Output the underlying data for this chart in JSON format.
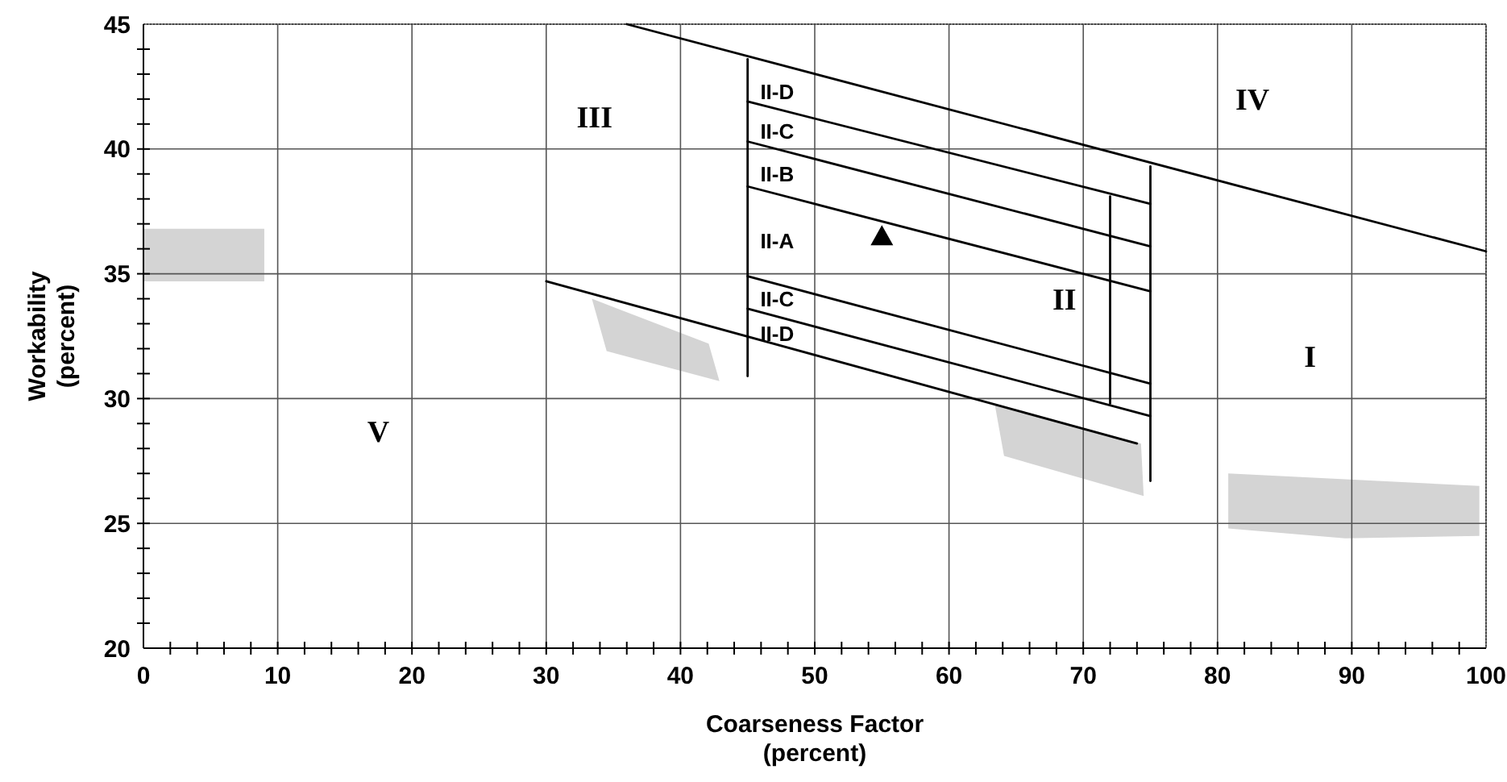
{
  "chart_data": {
    "type": "line",
    "xlabel": "Coarseness Factor\n(percent)",
    "ylabel": "Workability\n(percent)",
    "xlim": [
      0,
      100
    ],
    "ylim": [
      20,
      45
    ],
    "xticks": [
      0,
      {
        "value": 2,
        "label": null
      },
      {
        "value": 4,
        "label": null
      },
      {
        "value": 6,
        "label": null
      },
      {
        "value": 8,
        "label": null
      },
      10,
      {
        "value": 12,
        "label": null
      },
      {
        "value": 14,
        "label": null
      },
      {
        "value": 16,
        "label": null
      },
      {
        "value": 18,
        "label": null
      },
      20,
      {
        "value": 22,
        "label": null
      },
      {
        "value": 24,
        "label": null
      },
      {
        "value": 26,
        "label": null
      },
      {
        "value": 28,
        "label": null
      },
      30,
      {
        "value": 32,
        "label": null
      },
      {
        "value": 34,
        "label": null
      },
      {
        "value": 36,
        "label": null
      },
      {
        "value": 38,
        "label": null
      },
      40,
      {
        "value": 42,
        "label": null
      },
      {
        "value": 44,
        "label": null
      },
      {
        "value": 46,
        "label": null
      },
      {
        "value": 48,
        "label": null
      },
      50,
      {
        "value": 52,
        "label": null
      },
      {
        "value": 54,
        "label": null
      },
      {
        "value": 56,
        "label": null
      },
      {
        "value": 58,
        "label": null
      },
      60,
      {
        "value": 62,
        "label": null
      },
      {
        "value": 64,
        "label": null
      },
      {
        "value": 66,
        "label": null
      },
      {
        "value": 68,
        "label": null
      },
      70,
      {
        "value": 72,
        "label": null
      },
      {
        "value": 74,
        "label": null
      },
      {
        "value": 76,
        "label": null
      },
      {
        "value": 78,
        "label": null
      },
      80,
      {
        "value": 82,
        "label": null
      },
      {
        "value": 84,
        "label": null
      },
      {
        "value": 86,
        "label": null
      },
      {
        "value": 88,
        "label": null
      },
      90,
      {
        "value": 92,
        "label": null
      },
      {
        "value": 94,
        "label": null
      },
      {
        "value": 96,
        "label": null
      },
      {
        "value": 98,
        "label": null
      },
      100
    ],
    "yticks": [
      20,
      {
        "value": 21,
        "label": null
      },
      {
        "value": 22,
        "label": null
      },
      {
        "value": 23,
        "label": null
      },
      {
        "value": 24,
        "label": null
      },
      25,
      {
        "value": 26,
        "label": null
      },
      {
        "value": 27,
        "label": null
      },
      {
        "value": 28,
        "label": null
      },
      {
        "value": 29,
        "label": null
      },
      30,
      {
        "value": 31,
        "label": null
      },
      {
        "value": 32,
        "label": null
      },
      {
        "value": 33,
        "label": null
      },
      {
        "value": 34,
        "label": null
      },
      35,
      {
        "value": 36,
        "label": null
      },
      {
        "value": 37,
        "label": null
      },
      {
        "value": 38,
        "label": null
      },
      {
        "value": 39,
        "label": null
      },
      40,
      {
        "value": 41,
        "label": null
      },
      {
        "value": 42,
        "label": null
      },
      {
        "value": 43,
        "label": null
      },
      {
        "value": 44,
        "label": null
      },
      45
    ],
    "grid": true,
    "line_style": "solid",
    "marker": "none",
    "series": [
      {
        "color": "#000000",
        "x": [
          36,
          100
        ],
        "values": [
          45,
          35.9
        ]
      },
      {
        "color": "#000000",
        "x": [
          45,
          75
        ],
        "values": [
          41.9,
          37.8
        ]
      },
      {
        "color": "#000000",
        "x": [
          45,
          75
        ],
        "values": [
          40.3,
          36.1
        ]
      },
      {
        "color": "#000000",
        "x": [
          45,
          75
        ],
        "values": [
          38.5,
          34.3
        ]
      },
      {
        "color": "#000000",
        "x": [
          45,
          75
        ],
        "values": [
          34.9,
          30.6
        ]
      },
      {
        "color": "#000000",
        "x": [
          45,
          75
        ],
        "values": [
          33.6,
          29.3
        ]
      },
      {
        "color": "#000000",
        "x": [
          30,
          74
        ],
        "values": [
          34.7,
          28.2
        ]
      },
      {
        "color": "#000000",
        "x": [
          45,
          45
        ],
        "values": [
          43.6,
          30.9
        ]
      },
      {
        "color": "#000000",
        "x": [
          75,
          75
        ],
        "values": [
          39.3,
          26.7
        ]
      },
      {
        "color": "#000000",
        "x": [
          72,
          72
        ],
        "values": [
          38.1,
          29.8
        ]
      },
      {
        "type": "scatter",
        "marker": "triangle",
        "color": "#000000",
        "x": [
          55
        ],
        "values": [
          36.5
        ]
      }
    ],
    "annotations": [
      "II-D",
      "II-C",
      "II-B",
      "II-A",
      "II-C",
      "II-D",
      "I",
      "II",
      "III",
      "IV",
      "V"
    ]
  }
}
